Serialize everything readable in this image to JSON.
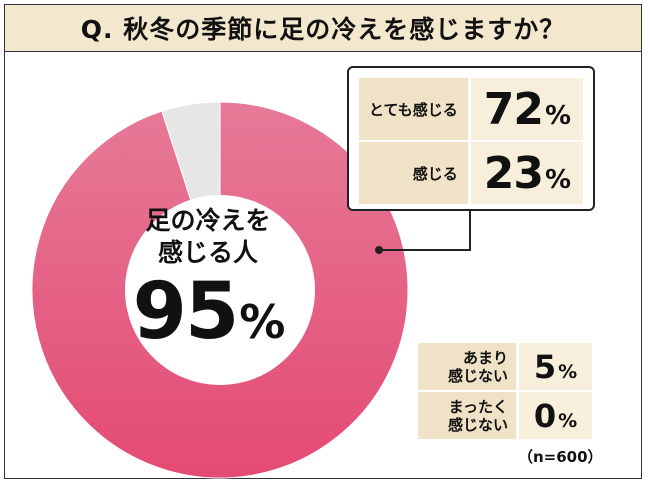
{
  "title": "Q. 秋冬の季節に足の冷えを感じますか？",
  "chart_data": {
    "type": "pie",
    "categories": [
      "足の冷えを感じる人",
      "あまり感じない・まったく感じない"
    ],
    "values": [
      95,
      5
    ],
    "total_n": 600,
    "colors": {
      "feel": "#e8517a",
      "not_feel": "#e6e6e6"
    }
  },
  "center": {
    "line1": "足の冷えを",
    "line2": "感じる人",
    "value": "95",
    "unit": "%"
  },
  "breakdown_top": [
    {
      "label": "とても感じる",
      "value": "72",
      "unit": "%"
    },
    {
      "label": "感じる",
      "value": "23",
      "unit": "%"
    }
  ],
  "breakdown_bottom": [
    {
      "label_line1": "あまり",
      "label_line2": "感じない",
      "value": "5",
      "unit": "%"
    },
    {
      "label_line1": "まったく",
      "label_line2": "感じない",
      "value": "0",
      "unit": "%"
    }
  ],
  "note": "（n=600）"
}
